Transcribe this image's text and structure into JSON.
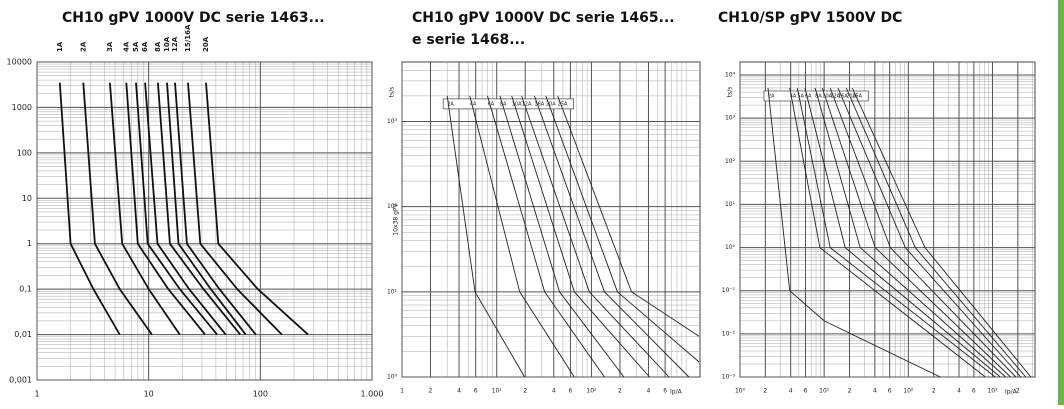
{
  "chart_data": [
    {
      "type": "line",
      "title": "CH10 gPV 1000V DC serie 1463...",
      "label_style": "rotated-top",
      "xscale": "log",
      "yscale": "log",
      "xlim": [
        1,
        1000
      ],
      "ylim": [
        0.001,
        10000
      ],
      "xticks": [
        1,
        10,
        100,
        {
          "value": 1000,
          "label": "1.000"
        }
      ],
      "yticks": [
        {
          "value": 0.001,
          "label": "0,001"
        },
        {
          "value": 0.01,
          "label": "0,01"
        },
        {
          "value": 0.1,
          "label": "0,1"
        },
        1,
        10,
        100,
        1000,
        10000
      ],
      "series": [
        {
          "name": "1A",
          "color": "#111",
          "x": [
            1.6,
            2.0,
            3.2,
            5.5
          ],
          "values": [
            3500,
            1,
            0.1,
            0.01
          ]
        },
        {
          "name": "2A",
          "color": "#111",
          "x": [
            2.6,
            3.3,
            5.5,
            10.7
          ],
          "values": [
            3500,
            1,
            0.1,
            0.01
          ]
        },
        {
          "name": "3A",
          "color": "#111",
          "x": [
            4.5,
            5.8,
            10,
            19
          ],
          "values": [
            3500,
            1,
            0.1,
            0.01
          ]
        },
        {
          "name": "4A",
          "color": "#111",
          "x": [
            6.3,
            8,
            15,
            32
          ],
          "values": [
            3500,
            1,
            0.1,
            0.01
          ]
        },
        {
          "name": "5A",
          "color": "#111",
          "x": [
            7.7,
            9.8,
            19,
            41
          ],
          "values": [
            3500,
            1,
            0.1,
            0.01
          ]
        },
        {
          "name": "6A",
          "color": "#111",
          "x": [
            9.3,
            12,
            23,
            49
          ],
          "values": [
            3500,
            1,
            0.1,
            0.01
          ]
        },
        {
          "name": "8A",
          "color": "#111",
          "x": [
            12.1,
            15.5,
            31,
            66
          ],
          "values": [
            3500,
            1,
            0.1,
            0.01
          ]
        },
        {
          "name": "10A",
          "color": "#111",
          "x": [
            14.6,
            18.5,
            36,
            74
          ],
          "values": [
            3500,
            1,
            0.1,
            0.01
          ]
        },
        {
          "name": "12A",
          "color": "#111",
          "x": [
            17.2,
            22,
            43,
            91
          ],
          "values": [
            3500,
            1,
            0.1,
            0.01
          ]
        },
        {
          "name": "15/16A",
          "color": "#111",
          "x": [
            22.5,
            29,
            62,
            156
          ],
          "values": [
            3500,
            1,
            0.1,
            0.01
          ]
        },
        {
          "name": "20A",
          "color": "#111",
          "x": [
            32.6,
            42,
            95,
            267
          ],
          "values": [
            3500,
            1,
            0.1,
            0.01
          ]
        }
      ]
    },
    {
      "type": "line",
      "title": "CH10 gPV 1000V DC serie 1465...",
      "subtitle": "e serie 1468...",
      "annotation": "10x38 gPV",
      "xlabel": "Ip/A",
      "ylabel": "ts/s",
      "label_style": "box",
      "xscale": "log",
      "yscale": "log",
      "xlim": [
        1,
        1400
      ],
      "ylim": [
        1,
        5000
      ],
      "xticks": [
        1,
        2,
        4,
        6,
        {
          "value": 10,
          "label": "10¹"
        },
        {
          "value": 20,
          "label": "2"
        },
        {
          "value": 40,
          "label": "4"
        },
        {
          "value": 60,
          "label": "6"
        },
        {
          "value": 100,
          "label": "10²"
        },
        {
          "value": 200,
          "label": "2"
        },
        {
          "value": 400,
          "label": "4"
        },
        {
          "value": 600,
          "label": "6"
        }
      ],
      "yticks": [
        {
          "value": 1,
          "label": "10⁰"
        },
        {
          "value": 10,
          "label": "10¹"
        },
        {
          "value": 100,
          "label": "10²"
        },
        {
          "value": 1000,
          "label": "10³"
        }
      ],
      "series": [
        {
          "name": "2A",
          "color": "#222",
          "x": [
            3.0,
            5.9,
            19.7
          ],
          "values": [
            2000,
            10,
            1
          ]
        },
        {
          "name": "4A",
          "color": "#222",
          "x": [
            5.2,
            17.5,
            66
          ],
          "values": [
            2000,
            10,
            1
          ]
        },
        {
          "name": "6A",
          "color": "#222",
          "x": [
            8.0,
            32,
            137
          ],
          "values": [
            2000,
            10,
            1
          ]
        },
        {
          "name": "8A",
          "color": "#222",
          "x": [
            10.8,
            46,
            220
          ],
          "values": [
            2000,
            10,
            1
          ]
        },
        {
          "name": "10A",
          "color": "#222",
          "x": [
            14.4,
            66,
            410
          ],
          "values": [
            2000,
            10,
            1
          ]
        },
        {
          "name": "12A",
          "color": "#222",
          "x": [
            18.3,
            95,
            660
          ],
          "values": [
            2000,
            10,
            1
          ]
        },
        {
          "name": "16A",
          "color": "#222",
          "x": [
            25,
            137,
            1070
          ],
          "values": [
            2000,
            10,
            1
          ]
        },
        {
          "name": "20A",
          "color": "#222",
          "x": [
            33,
            188,
            1370
          ],
          "values": [
            2000,
            10,
            1.5
          ]
        },
        {
          "name": "25A",
          "color": "#222",
          "x": [
            44,
            265,
            1370
          ],
          "values": [
            2000,
            10,
            3
          ]
        }
      ]
    },
    {
      "type": "line",
      "title": "CH10/SP gPV 1500V DC",
      "xlabel": "Ip/A",
      "ylabel": "ts/s",
      "label_style": "box",
      "xscale": "log",
      "yscale": "log",
      "xlim": [
        1,
        3200
      ],
      "ylim": [
        0.001,
        20000
      ],
      "xticks": [
        {
          "value": 1,
          "label": "10⁰"
        },
        2,
        4,
        6,
        {
          "value": 10,
          "label": "10¹"
        },
        {
          "value": 20,
          "label": "2"
        },
        {
          "value": 40,
          "label": "4"
        },
        {
          "value": 60,
          "label": "6"
        },
        {
          "value": 100,
          "label": "10²"
        },
        {
          "value": 200,
          "label": "2"
        },
        {
          "value": 400,
          "label": "4"
        },
        {
          "value": 600,
          "label": "6"
        },
        {
          "value": 1000,
          "label": "10³"
        },
        {
          "value": 2000,
          "label": "2"
        }
      ],
      "yticks": [
        {
          "value": 0.001,
          "label": "10⁻³"
        },
        {
          "value": 0.01,
          "label": "10⁻²"
        },
        {
          "value": 0.1,
          "label": "10⁻¹"
        },
        {
          "value": 1,
          "label": "10⁰"
        },
        {
          "value": 10,
          "label": "10¹"
        },
        {
          "value": 100,
          "label": "10²"
        },
        {
          "value": 1000,
          "label": "10³"
        },
        {
          "value": 10000,
          "label": "10⁴"
        }
      ],
      "series": [
        {
          "name": "2A",
          "color": "#222",
          "x": [
            2.15,
            3.9,
            10,
            240
          ],
          "values": [
            5000,
            0.1,
            0.02,
            0.001
          ]
        },
        {
          "name": "4A",
          "color": "#222",
          "x": [
            3.9,
            8.9,
            823
          ],
          "values": [
            5000,
            1,
            0.001
          ]
        },
        {
          "name": "5A",
          "color": "#222",
          "x": [
            4.8,
            11.8,
            1080
          ],
          "values": [
            5000,
            1,
            0.001
          ]
        },
        {
          "name": "6A",
          "color": "#222",
          "x": [
            5.9,
            17.8,
            1240
          ],
          "values": [
            5000,
            1,
            0.001
          ]
        },
        {
          "name": "8A",
          "color": "#222",
          "x": [
            7.8,
            26.8,
            1430
          ],
          "values": [
            5000,
            1,
            0.001
          ]
        },
        {
          "name": "10A",
          "color": "#222",
          "x": [
            9.5,
            40.4,
            1640
          ],
          "values": [
            5000,
            1,
            0.001
          ]
        },
        {
          "name": "12A",
          "color": "#222",
          "x": [
            11.8,
            61,
            1890
          ],
          "values": [
            5000,
            1,
            0.001
          ]
        },
        {
          "name": "16A",
          "color": "#222",
          "x": [
            14.6,
            92,
            2170
          ],
          "values": [
            5000,
            1,
            0.001
          ]
        },
        {
          "name": "20A",
          "color": "#222",
          "x": [
            18.3,
            121,
            2490
          ],
          "values": [
            5000,
            1,
            0.001
          ]
        },
        {
          "name": "25A",
          "color": "#222",
          "x": [
            21.6,
            158,
            2860
          ],
          "values": [
            5000,
            1,
            0.001
          ]
        }
      ]
    }
  ]
}
